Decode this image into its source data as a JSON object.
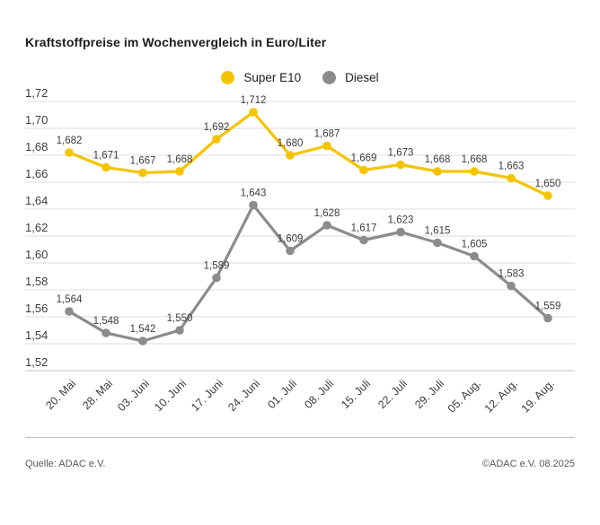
{
  "page": {
    "title": "Kraftstoffpreise im Wochenvergleich in Euro/Liter"
  },
  "legend": {
    "items": [
      {
        "label": "Super E10",
        "color": "#F5C400"
      },
      {
        "label": "Diesel",
        "color": "#8C8C8C"
      }
    ]
  },
  "chart_data": {
    "type": "line",
    "title": "Kraftstoffpreise im Wochenvergleich in Euro/Liter",
    "unit": "Euro/Liter",
    "categories": [
      "20. Mai",
      "28. Mai",
      "03. Juni",
      "10. Juni",
      "17. Juni",
      "24. Juni",
      "01. Juli",
      "08. Juli",
      "15. Juli",
      "22. Juli",
      "29. Juli",
      "05. Aug.",
      "12. Aug.",
      "19. Aug."
    ],
    "series": [
      {
        "name": "Super E10",
        "color": "#F5C400",
        "values": [
          1.682,
          1.671,
          1.667,
          1.668,
          1.692,
          1.712,
          1.68,
          1.687,
          1.669,
          1.673,
          1.668,
          1.668,
          1.663,
          1.65
        ]
      },
      {
        "name": "Diesel",
        "color": "#8C8C8C",
        "values": [
          1.564,
          1.548,
          1.542,
          1.55,
          1.589,
          1.643,
          1.609,
          1.628,
          1.617,
          1.623,
          1.615,
          1.605,
          1.583,
          1.559
        ]
      }
    ],
    "ylim": [
      1.52,
      1.72
    ],
    "ytick_step": 0.02,
    "ytick_labels": [
      "1,72",
      "1,70",
      "1,68",
      "1,66",
      "1,64",
      "1,62",
      "1,60",
      "1,58",
      "1,56",
      "1,54",
      "1,52"
    ],
    "grid": true,
    "legend_position": "top-center",
    "value_labels": true,
    "decimal_format": "comma"
  },
  "footer": {
    "source": "Quelle: ADAC e.V.",
    "copyright": "©ADAC e.V. 08.2025"
  }
}
